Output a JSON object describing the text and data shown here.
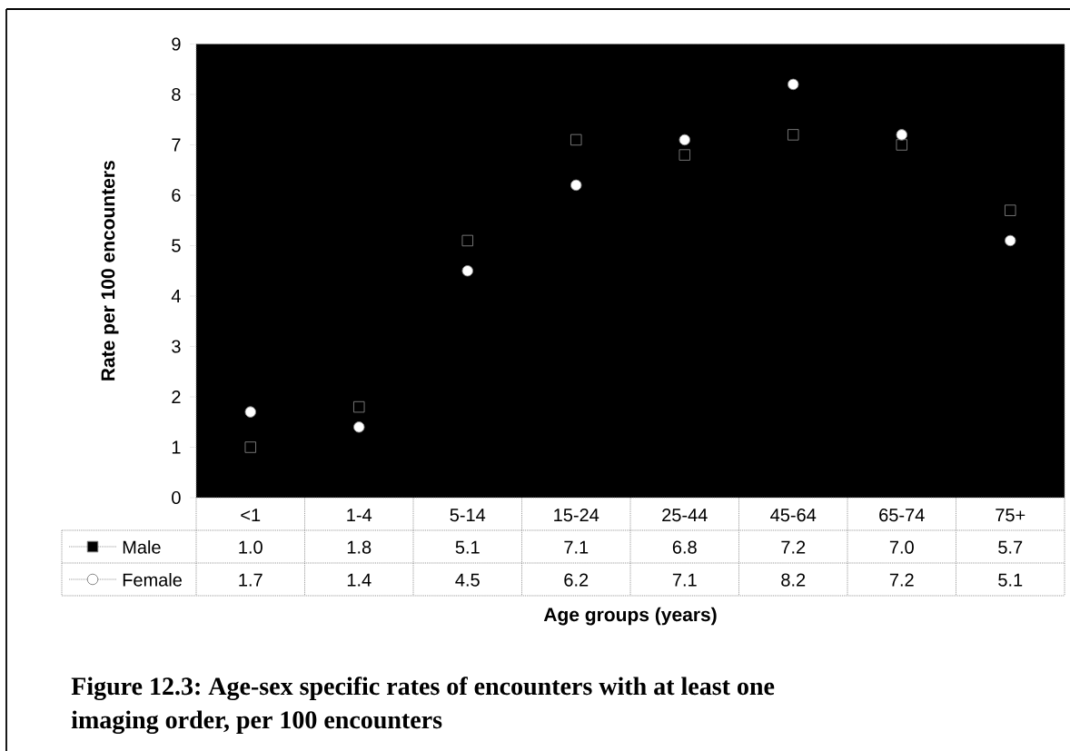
{
  "chart_data": {
    "type": "scatter",
    "xlabel": "Age groups (years)",
    "ylabel": "Rate per 100 encounters",
    "annotations": [
      "Figure 12.3: Age-sex specific rates of encounters with at least one imaging order, per 100 encounters"
    ],
    "categories": [
      "<1",
      "1-4",
      "5-14",
      "15-24",
      "25-44",
      "45-64",
      "65-74",
      "75+"
    ],
    "series": [
      {
        "name": "Male",
        "color": "#000000",
        "marker": "square",
        "values": [
          1.0,
          1.8,
          5.1,
          7.1,
          6.8,
          7.2,
          7.0,
          5.7
        ],
        "value_labels": [
          "1.0",
          "1.8",
          "5.1",
          "7.1",
          "6.8",
          "7.2",
          "7.0",
          "5.7"
        ]
      },
      {
        "name": "Female",
        "color": "#ffffff",
        "marker": "circle",
        "values": [
          1.7,
          1.4,
          4.5,
          6.2,
          7.1,
          8.2,
          7.2,
          5.1
        ],
        "value_labels": [
          "1.7",
          "1.4",
          "4.5",
          "6.2",
          "7.1",
          "8.2",
          "7.2",
          "5.1"
        ]
      }
    ],
    "ylim": [
      0,
      9
    ],
    "yticks": [
      0,
      1,
      2,
      3,
      4,
      5,
      6,
      7,
      8,
      9
    ],
    "legend": "bottom"
  }
}
